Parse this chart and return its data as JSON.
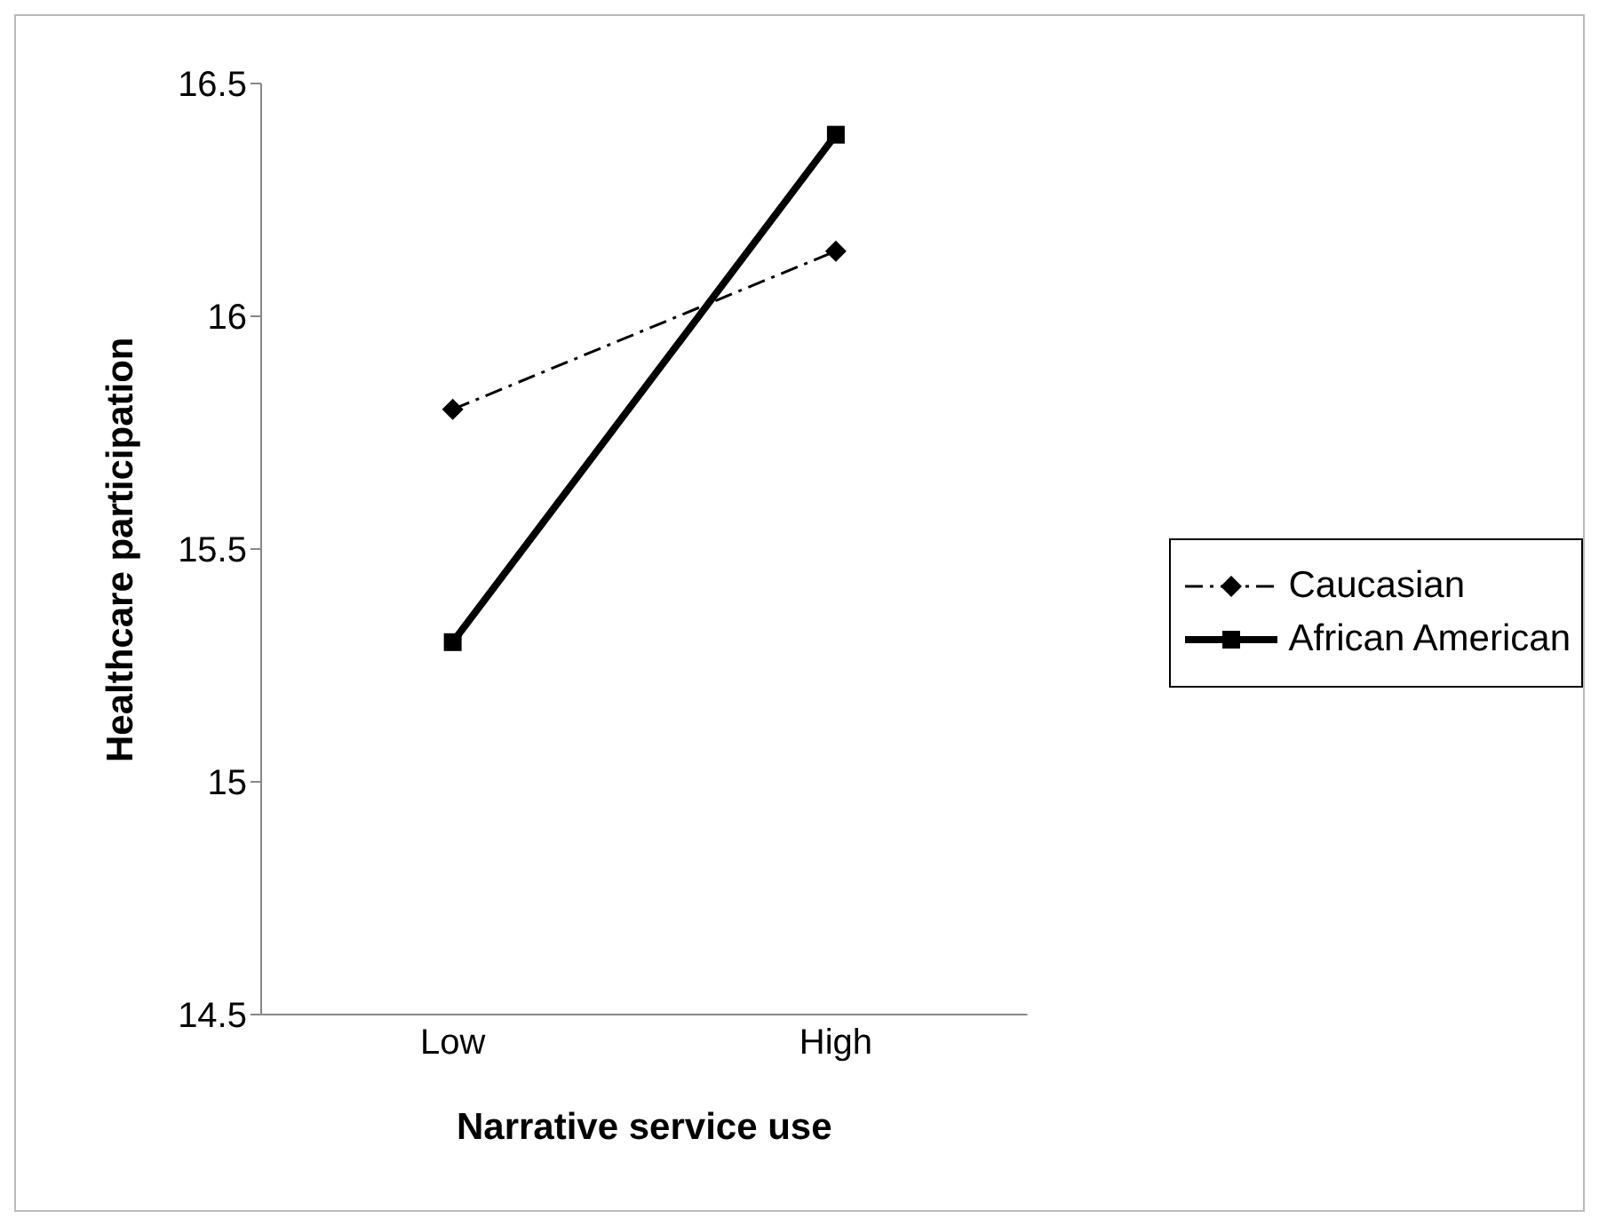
{
  "chart_data": {
    "type": "line",
    "xlabel": "Narrative service use",
    "ylabel": "Healthcare participation",
    "categories": [
      "Low",
      "High"
    ],
    "series": [
      {
        "name": "Caucasian",
        "color": "#000000",
        "values": [
          15.8,
          16.14
        ],
        "marker": "diamond",
        "line_style": "dashed"
      },
      {
        "name": "African American",
        "color": "#000000",
        "values": [
          15.3,
          16.39
        ],
        "marker": "square",
        "line_style": "solid"
      }
    ],
    "ylim": [
      14.5,
      16.5
    ],
    "yticks": [
      14.5,
      15,
      15.5,
      16,
      16.5
    ],
    "legend": "right"
  }
}
